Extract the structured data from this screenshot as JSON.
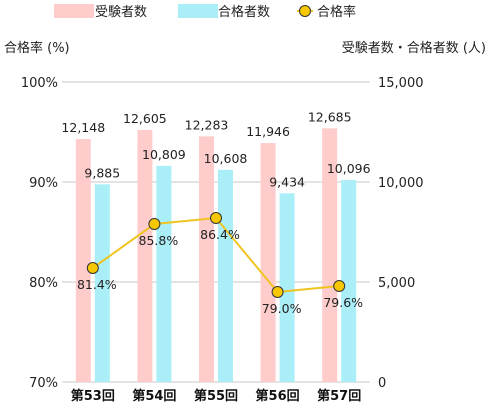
{
  "chart_data": {
    "type": "bar",
    "categories": [
      "第53回",
      "第54回",
      "第55回",
      "第56回",
      "第57回"
    ],
    "series": [
      {
        "name": "受験者数",
        "type": "bar",
        "axis": "right",
        "color": "#ffcccc",
        "values": [
          12148,
          12605,
          12283,
          11946,
          12685
        ]
      },
      {
        "name": "合格者数",
        "type": "bar",
        "axis": "right",
        "color": "#aaeef8",
        "values": [
          9885,
          10809,
          10608,
          9434,
          10096
        ]
      },
      {
        "name": "合格率",
        "type": "line",
        "axis": "left",
        "color": "#f0c420",
        "marker_color": "#f7c800",
        "values": [
          81.4,
          85.8,
          86.4,
          79.0,
          79.6
        ]
      }
    ],
    "bar_labels": {
      "受験者数": [
        "12,148",
        "12,605",
        "12,283",
        "11,946",
        "12,685"
      ],
      "合格者数": [
        "9,885",
        "10,809",
        "10,608",
        "9,434",
        "10,096"
      ]
    },
    "line_labels": [
      "81.4%",
      "85.8%",
      "86.4%",
      "79.0%",
      "79.6%"
    ],
    "left_axis": {
      "label": "合格率 (%)",
      "ylim": [
        70,
        100
      ],
      "ticks": [
        70,
        80,
        90,
        100
      ],
      "tick_labels": [
        "70%",
        "80%",
        "90%",
        "100%"
      ]
    },
    "right_axis": {
      "label": "受験者数・合格者数 (人)",
      "ylim": [
        0,
        15000
      ],
      "ticks": [
        0,
        5000,
        10000,
        15000
      ],
      "tick_labels": [
        "0",
        "5,000",
        "10,000",
        "15,000"
      ]
    },
    "grid": true,
    "legend": {
      "position": "top",
      "entries": [
        "受験者数",
        "合格者数",
        "合格率"
      ]
    }
  }
}
